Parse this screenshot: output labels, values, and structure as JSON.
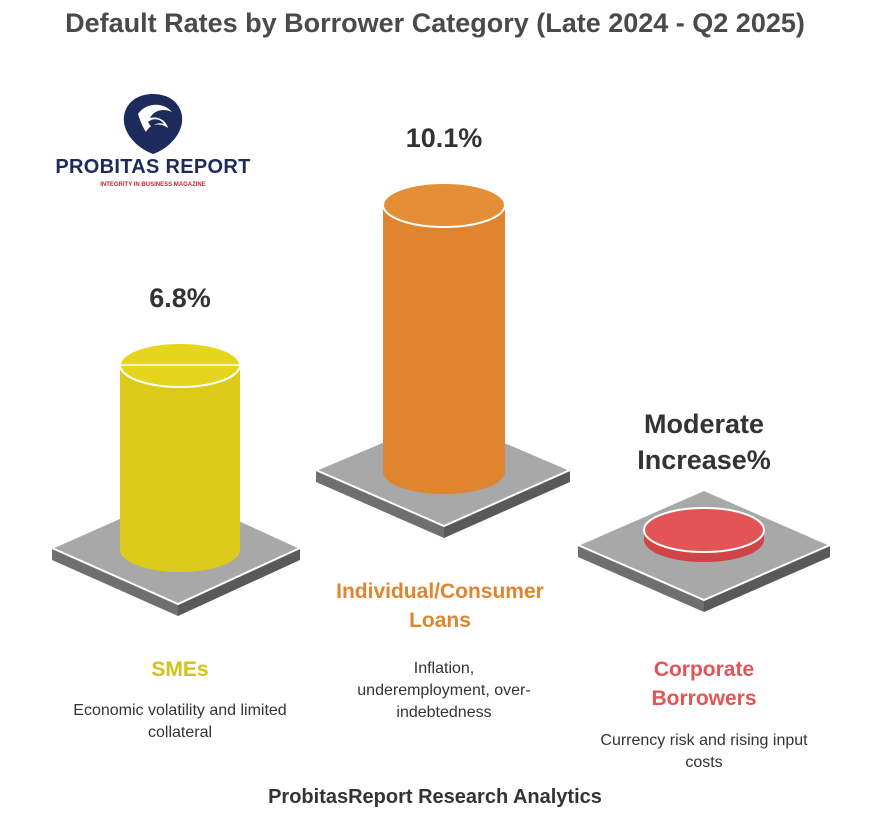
{
  "title": "Default Rates by Borrower Category (Late 2024 - Q2 2025)",
  "logo": {
    "name": "PROBITAS REPORT",
    "tagline": "INTEGRITY IN BUSINESS MAGAZINE"
  },
  "footer": "ProbitasReport Research Analytics",
  "colors": {
    "sme": "#dccb1a",
    "consumer": "#e0852e",
    "corporate": "#e35456",
    "platform": "#8c8c8c",
    "title": "#4a4a4a"
  },
  "chart_data": {
    "type": "bar",
    "title": "Default Rates by Borrower Category (Late 2024 - Q2 2025)",
    "categories": [
      "SMEs",
      "Individual/Consumer Loans",
      "Corporate Borrowers"
    ],
    "values": [
      6.8,
      10.1,
      null
    ],
    "value_labels": [
      "6.8%",
      "10.1%",
      "Moderate Increase%"
    ],
    "descriptions": [
      "Economic volatility and limited collateral",
      "Inflation, underemployment, over-indebtedness",
      "Currency risk and rising input costs"
    ],
    "unit": "%"
  }
}
